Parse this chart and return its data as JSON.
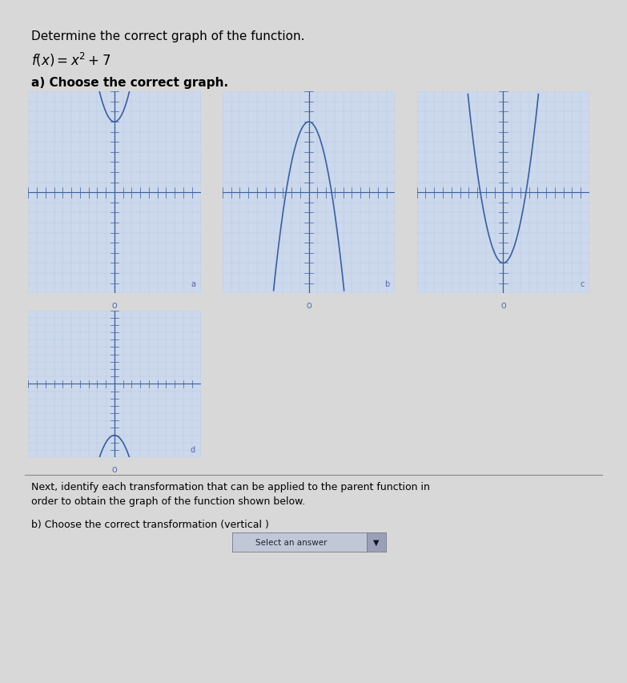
{
  "title": "Determine the correct graph of the function.",
  "function_label": "f(x) = x² + 7",
  "subtitle_a": "a) Choose the correct graph.",
  "text_b": "b) Choose the correct transformation (vertical ) ",
  "middle_text": "Next, identify each transformation that can be applied to the parent function in\norder to obtain the graph of the function shown below.",
  "curve_color": "#3a5fa0",
  "axis_color": "#3a5fa0",
  "grid_color": "#b8c8de",
  "page_bg": "#d8d8d8",
  "graph_bg": "#ccd8ec",
  "dropdown_text": "Select an answer",
  "dropdown_bg": "#c0c8d8",
  "graphs": [
    {
      "type": "parabola_up_shift7",
      "xlim": [
        -10,
        10
      ],
      "ylim": [
        -10,
        10
      ]
    },
    {
      "type": "parabola_down_shift7",
      "xlim": [
        -10,
        10
      ],
      "ylim": [
        -10,
        10
      ]
    },
    {
      "type": "parabola_up_shiftneg7",
      "xlim": [
        -10,
        10
      ],
      "ylim": [
        -10,
        10
      ]
    },
    {
      "type": "parabola_down_shiftneg7",
      "xlim": [
        -10,
        10
      ],
      "ylim": [
        -10,
        10
      ]
    }
  ],
  "graph_labels": [
    "a",
    "b",
    "c",
    "d"
  ],
  "font_size_title": 11,
  "font_size_func": 11,
  "font_size_sub": 11,
  "font_size_body": 9
}
